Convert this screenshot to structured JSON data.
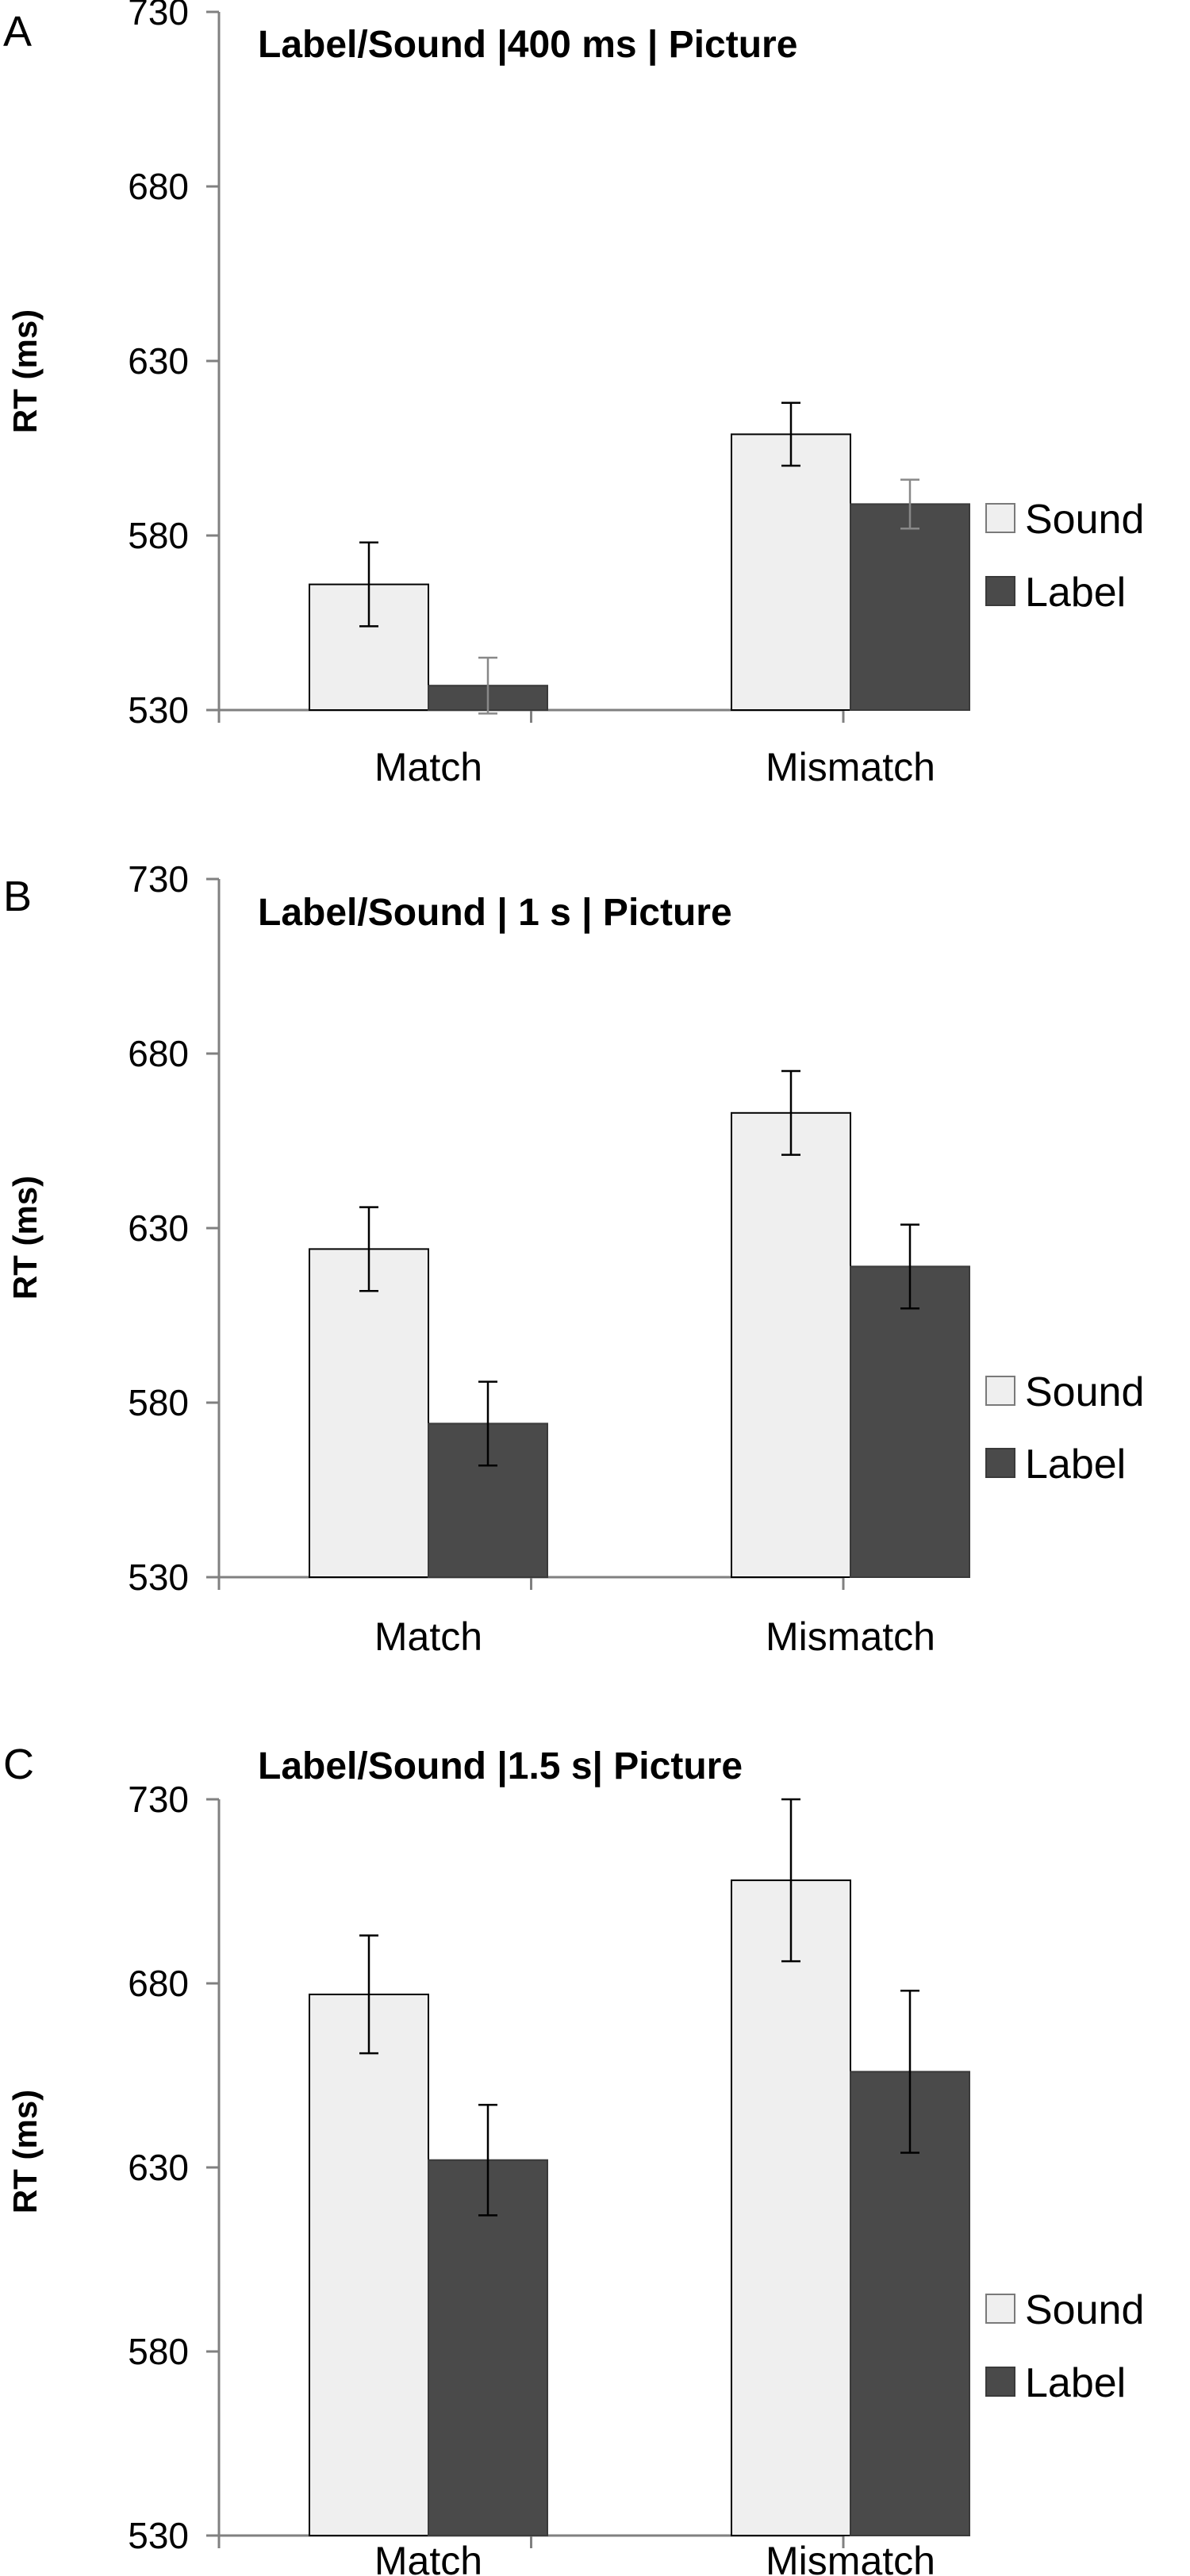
{
  "chart_data": [
    {
      "type": "bar",
      "panel_label": "A",
      "title": "Label/Sound  |400 ms  | Picture",
      "ylabel": "RT (ms)",
      "ylim": [
        530,
        730
      ],
      "yticks": [
        530,
        580,
        630,
        680,
        730
      ],
      "categories": [
        "Match",
        "Mismatch"
      ],
      "series": [
        {
          "name": "Sound",
          "values": [
            566,
            609
          ],
          "errors": [
            12,
            9
          ],
          "color": "#efefef"
        },
        {
          "name": "Label",
          "values": [
            537,
            589
          ],
          "errors": [
            8,
            7
          ],
          "color": "#4a4a4a"
        }
      ],
      "legend_position": "right"
    },
    {
      "type": "bar",
      "panel_label": "B",
      "title": "Label/Sound  | 1 s  | Picture",
      "ylabel": "RT (ms)",
      "ylim": [
        530,
        730
      ],
      "yticks": [
        530,
        580,
        630,
        680,
        730
      ],
      "categories": [
        "Match",
        "Mismatch"
      ],
      "series": [
        {
          "name": "Sound",
          "values": [
            624,
            663
          ],
          "errors": [
            12,
            12
          ],
          "color": "#efefef"
        },
        {
          "name": "Label",
          "values": [
            574,
            619
          ],
          "errors": [
            12,
            12
          ],
          "color": "#4a4a4a"
        }
      ],
      "legend_position": "right"
    },
    {
      "type": "bar",
      "panel_label": "C",
      "title": "Label/Sound  |1.5 s|  Picture",
      "ylabel": "RT (ms)",
      "ylim": [
        530,
        730
      ],
      "yticks": [
        530,
        580,
        630,
        680,
        730
      ],
      "categories": [
        "Match",
        "Mismatch"
      ],
      "series": [
        {
          "name": "Sound",
          "values": [
            677,
            708
          ],
          "errors": [
            16,
            22
          ],
          "color": "#efefef"
        },
        {
          "name": "Label",
          "values": [
            632,
            656
          ],
          "errors": [
            15,
            22
          ],
          "color": "#4a4a4a"
        }
      ],
      "legend_position": "right"
    }
  ]
}
